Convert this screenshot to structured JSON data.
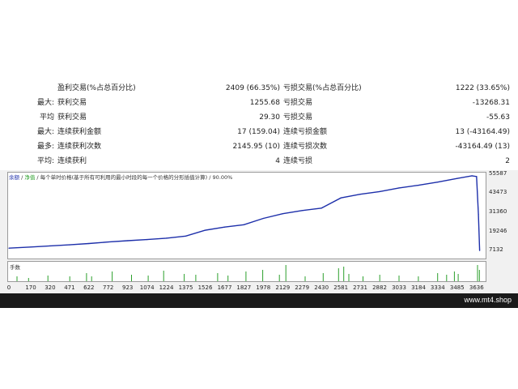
{
  "stats": [
    {
      "label1": "",
      "name1": "盈利交易(%占总百分比)",
      "value1": "2409 (66.35%)",
      "name2": "亏损交易(%占总百分比)",
      "value2": "1222 (33.65%)"
    },
    {
      "label1": "最大:",
      "name1": "获利交易",
      "value1": "1255.68",
      "name2": "亏损交易",
      "value2": "-13268.31"
    },
    {
      "label1": "平均",
      "name1": "获利交易",
      "value1": "29.30",
      "name2": "亏损交易",
      "value2": "-55.63"
    },
    {
      "label1": "最大:",
      "name1": "连续获利金额",
      "value1": "17 (159.04)",
      "name2": "连续亏损金额",
      "value2": "13 (-43164.49)"
    },
    {
      "label1": "最多:",
      "name1": "连续获利次数",
      "value1": "2145.95 (10)",
      "name2": "连续亏损次数",
      "value2": "-43164.49 (13)"
    },
    {
      "label1": "平均:",
      "name1": "连续获利",
      "value1": "4",
      "name2": "连续亏损",
      "value2": "2"
    }
  ],
  "legend": {
    "balance": "余额",
    "sep1": " / ",
    "equity": "净值",
    "rest": " / 每个单时价格(基于所有可利用的最小时段的每一个价格的分形插值计算) / 90.00%"
  },
  "volume_label": "手数",
  "footer": "www.mt4.shop",
  "colors": {
    "balance": "#1d2faa",
    "equity": "#2ca02c",
    "volume": "#2ca02c"
  },
  "chart_data": {
    "type": "line",
    "xlabel": "",
    "ylabel": "",
    "x_ticks": [
      0,
      170,
      320,
      471,
      622,
      772,
      923,
      1074,
      1224,
      1375,
      1526,
      1677,
      1827,
      1978,
      2129,
      2279,
      2430,
      2581,
      2731,
      2882,
      3033,
      3184,
      3334,
      3485,
      3636
    ],
    "y_ticks": [
      7132,
      19246,
      31360,
      43473,
      55587
    ],
    "xlim": [
      0,
      3700
    ],
    "ylim": [
      1600,
      57000
    ],
    "series": [
      {
        "x": [
          0,
          170,
          320,
          471,
          622,
          772,
          923,
          1074,
          1224,
          1375,
          1526,
          1677,
          1827,
          1978,
          2129,
          2279,
          2430,
          2581,
          2731,
          2882,
          3033,
          3184,
          3334,
          3485,
          3600,
          3636,
          3650,
          3660
        ],
        "values": [
          8700,
          9400,
          10100,
          10800,
          11600,
          12600,
          13400,
          14100,
          15000,
          16300,
          20000,
          22000,
          23500,
          27500,
          30500,
          32500,
          34000,
          40500,
          42800,
          44500,
          46800,
          48500,
          50500,
          52800,
          54500,
          54000,
          30000,
          7132
        ]
      }
    ],
    "volume": [
      {
        "x": 60,
        "v": 0.3
      },
      {
        "x": 150,
        "v": 0.2
      },
      {
        "x": 300,
        "v": 0.35
      },
      {
        "x": 470,
        "v": 0.3
      },
      {
        "x": 600,
        "v": 0.5
      },
      {
        "x": 640,
        "v": 0.3
      },
      {
        "x": 800,
        "v": 0.6
      },
      {
        "x": 950,
        "v": 0.4
      },
      {
        "x": 1080,
        "v": 0.35
      },
      {
        "x": 1200,
        "v": 0.65
      },
      {
        "x": 1360,
        "v": 0.45
      },
      {
        "x": 1450,
        "v": 0.4
      },
      {
        "x": 1620,
        "v": 0.5
      },
      {
        "x": 1700,
        "v": 0.35
      },
      {
        "x": 1840,
        "v": 0.6
      },
      {
        "x": 1970,
        "v": 0.7
      },
      {
        "x": 2100,
        "v": 0.4
      },
      {
        "x": 2150,
        "v": 1.0
      },
      {
        "x": 2300,
        "v": 0.3
      },
      {
        "x": 2440,
        "v": 0.5
      },
      {
        "x": 2560,
        "v": 0.8
      },
      {
        "x": 2600,
        "v": 0.9
      },
      {
        "x": 2640,
        "v": 0.45
      },
      {
        "x": 2750,
        "v": 0.3
      },
      {
        "x": 2880,
        "v": 0.4
      },
      {
        "x": 3030,
        "v": 0.35
      },
      {
        "x": 3180,
        "v": 0.3
      },
      {
        "x": 3330,
        "v": 0.5
      },
      {
        "x": 3400,
        "v": 0.4
      },
      {
        "x": 3460,
        "v": 0.6
      },
      {
        "x": 3490,
        "v": 0.45
      },
      {
        "x": 3640,
        "v": 1.0
      },
      {
        "x": 3655,
        "v": 0.7
      }
    ]
  }
}
